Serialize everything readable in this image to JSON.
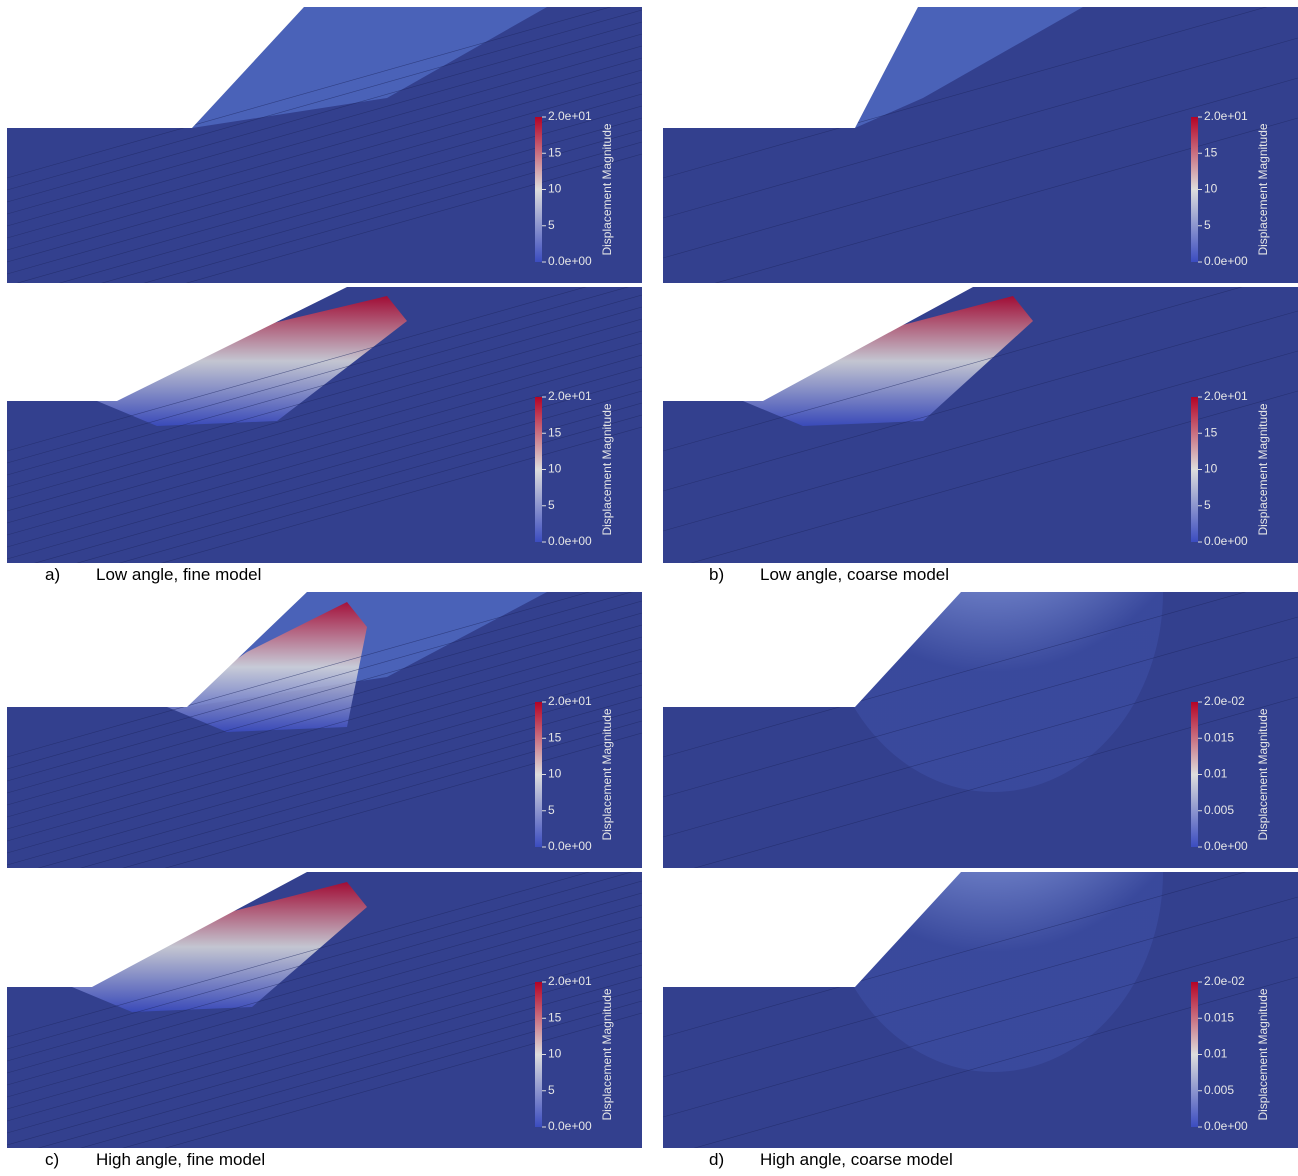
{
  "panels": [
    {
      "colorbar": {
        "title": "Displacement Magnitude",
        "ticks": [
          "2.0e+01",
          "15",
          "10",
          "5",
          "0.0e+00"
        ]
      }
    },
    {
      "colorbar": {
        "title": "Displacement Magnitude",
        "ticks": [
          "2.0e+01",
          "15",
          "10",
          "5",
          "0.0e+00"
        ]
      }
    },
    {
      "colorbar": {
        "title": "Displacement Magnitude",
        "ticks": [
          "2.0e+01",
          "15",
          "10",
          "5",
          "0.0e+00"
        ]
      }
    },
    {
      "colorbar": {
        "title": "Displacement Magnitude",
        "ticks": [
          "2.0e+01",
          "15",
          "10",
          "5",
          "0.0e+00"
        ]
      }
    },
    {
      "colorbar": {
        "title": "Displacement Magnitude",
        "ticks": [
          "2.0e+01",
          "15",
          "10",
          "5",
          "0.0e+00"
        ]
      }
    },
    {
      "colorbar": {
        "title": "Displacement Magnitude",
        "ticks": [
          "2.0e-02",
          "0.015",
          "0.01",
          "0.005",
          "0.0e+00"
        ]
      }
    },
    {
      "colorbar": {
        "title": "Displacement Magnitude",
        "ticks": [
          "2.0e+01",
          "15",
          "10",
          "5",
          "0.0e+00"
        ]
      }
    },
    {
      "colorbar": {
        "title": "Displacement Magnitude",
        "ticks": [
          "2.0e-02",
          "0.015",
          "0.01",
          "0.005",
          "0.0e+00"
        ]
      }
    }
  ],
  "captions": [
    {
      "letter": "a)",
      "text": "Low angle, fine model"
    },
    {
      "letter": "b)",
      "text": "Low angle, coarse model"
    },
    {
      "letter": "c)",
      "text": "High angle, fine model"
    },
    {
      "letter": "d)",
      "text": "High angle, coarse model"
    }
  ]
}
